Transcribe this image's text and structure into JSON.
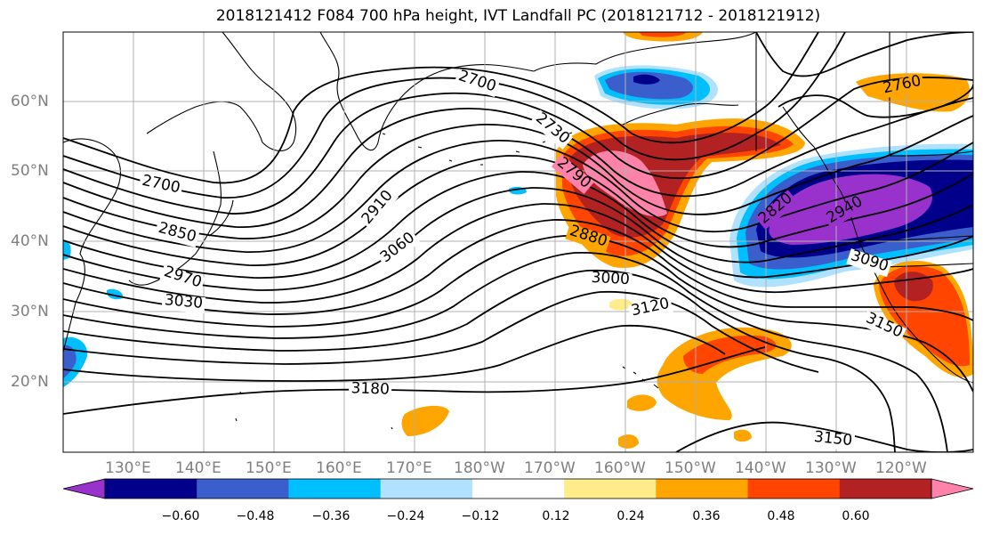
{
  "title": "2018121412 F084 700 hPa height, IVT Landfall PC (2018121712 - 2018121912)",
  "lat_labels": [
    "60°N",
    "50°N",
    "40°N",
    "30°N",
    "20°N"
  ],
  "lon_labels": [
    "130°E",
    "140°E",
    "150°E",
    "160°E",
    "170°E",
    "180°W",
    "170°W",
    "160°W",
    "150°W",
    "140°W",
    "130°W",
    "120°W"
  ],
  "colorbar": {
    "ticks": [
      "−0.60",
      "−0.48",
      "−0.36",
      "−0.24",
      "−0.12",
      "0.12",
      "0.24",
      "0.36",
      "0.48",
      "0.60"
    ],
    "colors": [
      "#9932cc",
      "#00008b",
      "#3a5fcd",
      "#00bfff",
      "#b0e2ff",
      "#ffffff",
      "#ffec8b",
      "#ffa500",
      "#ff4500",
      "#b22222",
      "#ff82ab"
    ]
  },
  "contour_labels": {
    "c2700a": "2700",
    "c2700b": "2700",
    "c2730": "2730",
    "c2760": "2760",
    "c2790": "2790",
    "c2820": "2820",
    "c2850": "2850",
    "c2880": "2880",
    "c2910": "2910",
    "c2940": "2940",
    "c2970": "2970",
    "c3000": "3000",
    "c3030": "3030",
    "c3060": "3060",
    "c3090": "3090",
    "c3120": "3120",
    "c3150a": "3150",
    "c3150b": "3150",
    "c3180": "3180"
  }
}
